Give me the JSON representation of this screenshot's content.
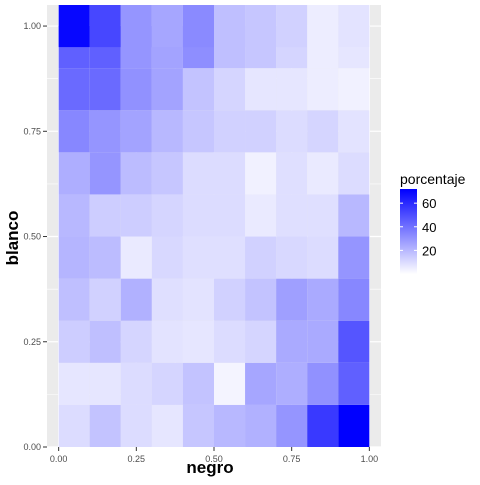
{
  "chart_data": {
    "type": "heatmap",
    "title": "",
    "xlabel": "negro",
    "ylabel": "blanco",
    "x_ticks": [
      "0.00",
      "0.25",
      "0.50",
      "0.75",
      "1.00"
    ],
    "y_ticks": [
      "0.00",
      "0.25",
      "0.50",
      "0.75",
      "1.00"
    ],
    "x_centers": [
      0.05,
      0.15,
      0.25,
      0.35,
      0.45,
      0.55,
      0.65,
      0.75,
      0.85,
      0.95
    ],
    "y_centers": [
      0.05,
      0.15,
      0.25,
      0.35,
      0.45,
      0.55,
      0.65,
      0.75,
      0.85,
      0.95,
      1.0
    ],
    "xlim": [
      -0.0375,
      1.0375
    ],
    "ylim": [
      0,
      1.05
    ],
    "grid": true,
    "values": [
      [
        10,
        17,
        10,
        7,
        16,
        20,
        22,
        30,
        56,
        72
      ],
      [
        7,
        7,
        10,
        12,
        17,
        3,
        25,
        23,
        31,
        45
      ],
      [
        14,
        18,
        12,
        8,
        7,
        10,
        12,
        24,
        24,
        48
      ],
      [
        18,
        13,
        22,
        9,
        8,
        13,
        17,
        27,
        24,
        34
      ],
      [
        21,
        19,
        6,
        11,
        9,
        9,
        13,
        11,
        10,
        30
      ],
      [
        20,
        14,
        14,
        12,
        10,
        10,
        6,
        9,
        9,
        20
      ],
      [
        23,
        30,
        19,
        16,
        10,
        10,
        4,
        9,
        6,
        10
      ],
      [
        34,
        30,
        26,
        20,
        16,
        13,
        13,
        10,
        12,
        8
      ],
      [
        42,
        42,
        31,
        26,
        17,
        12,
        7,
        7,
        5,
        4
      ],
      [
        45,
        45,
        30,
        26,
        32,
        18,
        16,
        12,
        5,
        7
      ],
      [
        70,
        52,
        30,
        25,
        33,
        18,
        16,
        13,
        5,
        8
      ]
    ],
    "legend": {
      "title": "porcentaje",
      "ticks": [
        20,
        40,
        60
      ],
      "range": [
        0,
        72
      ],
      "low_color": "#ffffff",
      "high_color": "#0000ff",
      "position": "right"
    },
    "panel_color": "#ebebeb",
    "grid_color": "#ffffff"
  }
}
